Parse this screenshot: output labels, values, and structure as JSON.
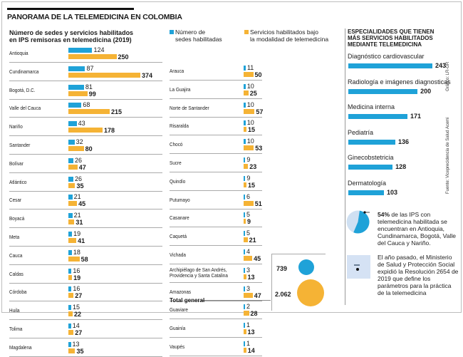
{
  "header": {
    "title": "PANORAMA DE LA TELEMEDICINA EN COLOMBIA",
    "subtitle_line1": "Número de sedes y servicios habilitados",
    "subtitle_line2": "en IPS remisoras en telemedicina  (2019)"
  },
  "legend": {
    "sedes_line1": "Número de",
    "sedes_line2": "sedes habilitadas",
    "servicios_line1": "Servicios habilitados bajo",
    "servicios_line2": "la modalidad de telemedicina"
  },
  "colors": {
    "blue": "#1fa2d8",
    "orange": "#f5b335",
    "pie_light": "#cfe0f2"
  },
  "chart_data": [
    {
      "type": "bar",
      "title": "Número de sedes y servicios habilitados en IPS remisoras en telemedicina (2019)",
      "orientation": "horizontal",
      "categories": [
        "Antioquia",
        "Cundinamarca",
        "Bogotá, D.C.",
        "Valle del Cauca",
        "Nariño",
        "Santander",
        "Bolívar",
        "Atlántico",
        "Cesar",
        "Boyacá",
        "Meta",
        "Cauca",
        "Caldas",
        "Córdoba",
        "Huila",
        "Tolima",
        "Magdalena",
        "Arauca",
        "La Guajira",
        "Norte de Santander",
        "Risaralda",
        "Chocó",
        "Sucre",
        "Quindío",
        "Putumayo",
        "Casanare",
        "Caquetá",
        "Vichada",
        "Archipiélago de San Andrés, Providencia y Santa Catalina",
        "Amazonas",
        "Guaviare",
        "Guainía",
        "Vaupés"
      ],
      "series": [
        {
          "name": "Número de sedes habilitadas",
          "values": [
            124,
            87,
            81,
            68,
            43,
            32,
            26,
            26,
            21,
            21,
            19,
            18,
            16,
            16,
            15,
            14,
            13,
            11,
            10,
            10,
            10,
            10,
            9,
            9,
            6,
            5,
            5,
            4,
            3,
            3,
            2,
            1,
            1
          ]
        },
        {
          "name": "Servicios habilitados bajo la modalidad de telemedicina",
          "values": [
            250,
            374,
            99,
            215,
            178,
            80,
            47,
            35,
            45,
            31,
            41,
            58,
            19,
            27,
            22,
            27,
            35,
            50,
            25,
            57,
            15,
            53,
            23,
            15,
            51,
            9,
            21,
            45,
            13,
            47,
            28,
            13,
            14
          ]
        }
      ],
      "totals": {
        "label": "Total general",
        "sedes": "739",
        "servicios": "2.062"
      }
    },
    {
      "type": "bar",
      "title": "ESPECIALIDADES QUE TIENEN MÁS SERVICIOS HABILITADOS MEDIANTE TELEMEDICINA",
      "orientation": "horizontal",
      "categories": [
        "Diagnóstico cardiovascular",
        "Radiología e imágenes diagnosticas",
        "Medicina interna",
        "Pediatría",
        "Ginecobstetricia",
        "Dermatología"
      ],
      "values": [
        243,
        200,
        171,
        136,
        128,
        103
      ]
    },
    {
      "type": "pie",
      "categories": [
        "Antioquia, Cundinamarca, Bogotá, Valle del Cauca y Nariño",
        "Resto"
      ],
      "values": [
        54,
        46
      ]
    }
  ],
  "right": {
    "title_line1": "ESPECIALIDADES QUE TIENEN",
    "title_line2": "MÁS SERVICIOS HABILITADOS",
    "title_line3": "MEDIANTE TELEMEDICINA",
    "credit": "Gráfico: LR-GR",
    "source": "Fuente: Viceprecidencia de Salud Acemi",
    "pie_note_bold": "54%",
    "pie_note": " de las IPS con telemedicina habilitada se encuentran en Antioquia, Cundinamarca, Bogotá, Valle del Cauca y Nariño.",
    "law_note": "El año pasado, el Ministerio de Salud y Protección Social expidió la Resolución 2654 de 2019 que define los parámetros para la práctica de la telemedicina"
  }
}
